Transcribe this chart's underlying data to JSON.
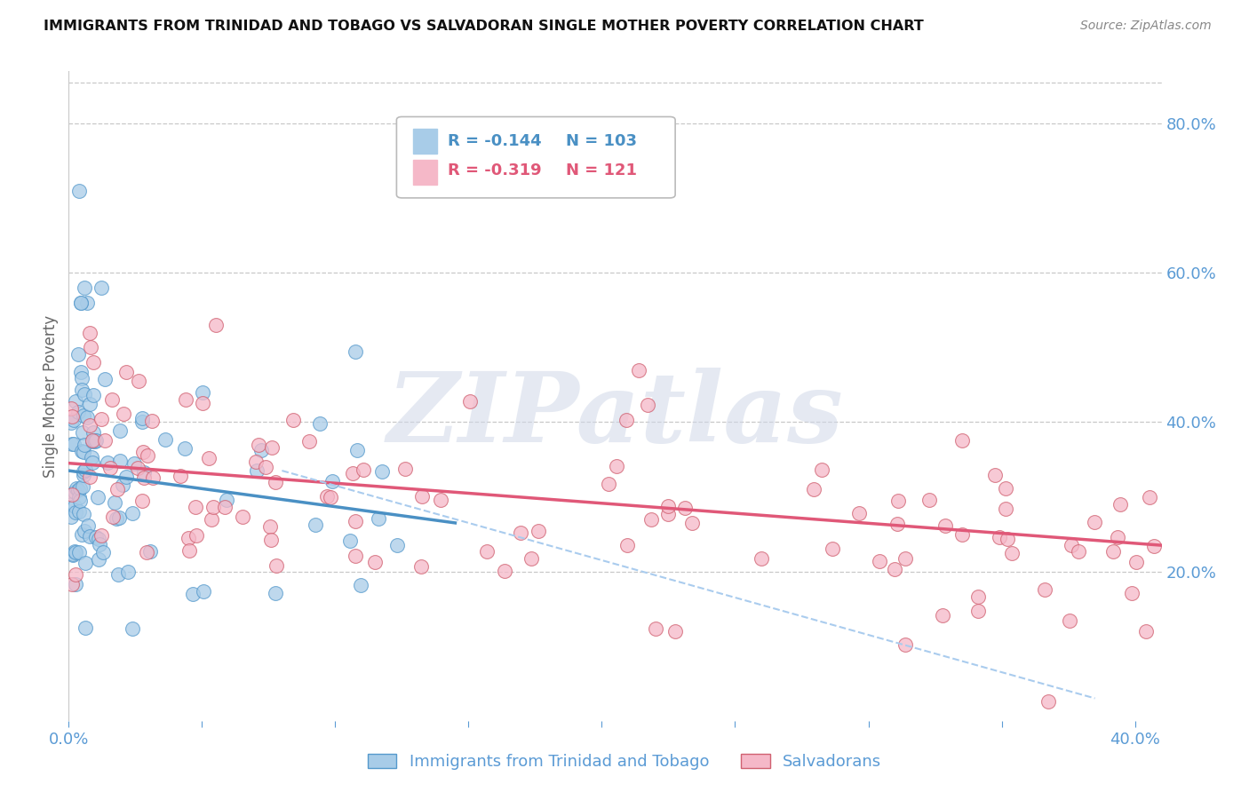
{
  "title": "IMMIGRANTS FROM TRINIDAD AND TOBAGO VS SALVADORAN SINGLE MOTHER POVERTY CORRELATION CHART",
  "source": "Source: ZipAtlas.com",
  "ylabel": "Single Mother Poverty",
  "r1": -0.144,
  "n1": 103,
  "r2": -0.319,
  "n2": 121,
  "blue_color": "#a8cce8",
  "pink_color": "#f5b8c8",
  "blue_line_color": "#4a90c4",
  "pink_line_color": "#e05878",
  "blue_edge_color": "#5599cc",
  "pink_edge_color": "#d06070",
  "axis_label_color": "#5b9bd5",
  "legend_label1": "Immigrants from Trinidad and Tobago",
  "legend_label2": "Salvadorans",
  "xlim": [
    0.0,
    0.41
  ],
  "ylim": [
    0.0,
    0.87
  ],
  "yticks_right": [
    0.2,
    0.4,
    0.6,
    0.8
  ],
  "ytick_labels_right": [
    "20.0%",
    "40.0%",
    "60.0%",
    "80.0%"
  ],
  "watermark": "ZIPatlas",
  "background_color": "#ffffff",
  "grid_color": "#c8c8c8",
  "blue_line_x": [
    0.0,
    0.145
  ],
  "blue_line_y": [
    0.335,
    0.265
  ],
  "pink_line_x": [
    0.0,
    0.41
  ],
  "pink_line_y": [
    0.345,
    0.235
  ],
  "dash_line_x": [
    0.08,
    0.385
  ],
  "dash_line_y": [
    0.335,
    0.03
  ]
}
